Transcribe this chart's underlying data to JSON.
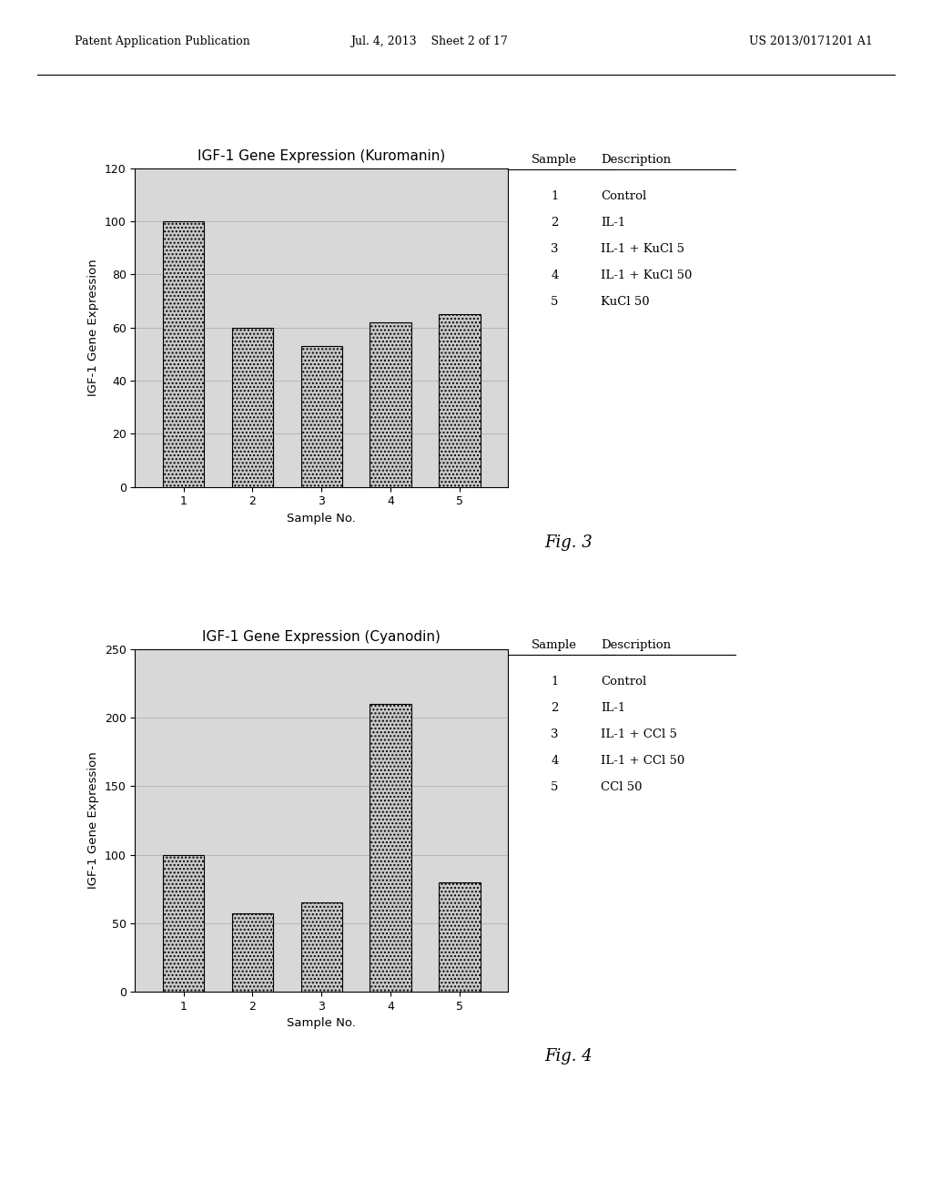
{
  "fig1": {
    "title": "IGF-1 Gene Expression (Kuromanin)",
    "xlabel": "Sample No.",
    "ylabel": "IGF-1 Gene Expression",
    "values": [
      100,
      60,
      53,
      62,
      65
    ],
    "xlabels": [
      "1",
      "2",
      "3",
      "4",
      "5"
    ],
    "ylim": [
      0,
      120
    ],
    "yticks": [
      0,
      20,
      40,
      60,
      80,
      100,
      120
    ],
    "sample_numbers": [
      "1",
      "2",
      "3",
      "4",
      "5"
    ],
    "descriptions": [
      "Control",
      "IL-1",
      "IL-1 + KuCl 5",
      "IL-1 + KuCl 50",
      "KuCl 50"
    ],
    "fig_label": "Fig. 3"
  },
  "fig2": {
    "title": "IGF-1 Gene Expression (Cyanodin)",
    "xlabel": "Sample No.",
    "ylabel": "IGF-1 Gene Expression",
    "values": [
      100,
      57,
      65,
      210,
      80
    ],
    "xlabels": [
      "1",
      "2",
      "3",
      "4",
      "5"
    ],
    "ylim": [
      0,
      250
    ],
    "yticks": [
      0,
      50,
      100,
      150,
      200,
      250
    ],
    "sample_numbers": [
      "1",
      "2",
      "3",
      "4",
      "5"
    ],
    "descriptions": [
      "Control",
      "IL-1",
      "IL-1 + CCl 5",
      "IL-1 + CCl 50",
      "CCl 50"
    ],
    "fig_label": "Fig. 4"
  },
  "bar_color": "#c8c8c8",
  "bar_edge_color": "#000000",
  "background_color": "#ffffff",
  "grid_color": "#aaaaaa",
  "chart_bg_color": "#d8d8d8",
  "title_fontsize": 11,
  "label_fontsize": 9.5,
  "tick_fontsize": 9,
  "legend_fontsize": 9.5,
  "header_fontsize": 9.5
}
